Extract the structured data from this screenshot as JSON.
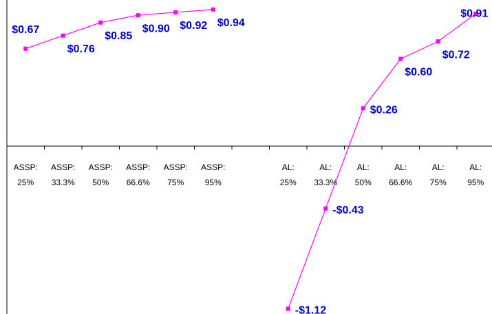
{
  "chart_data": {
    "type": "line",
    "categories": [
      "ASSP:\n25%",
      "ASSP:\n33.3%",
      "ASSP:\n50%",
      "ASSP:\n66.6%",
      "ASSP:\n75%",
      "ASSP:\n95%",
      null,
      "AL:\n25%",
      "AL:\n33.3%",
      "AL:\n50%",
      "AL:\n66.6%",
      "AL:\n75%",
      "AL:\n95%"
    ],
    "series": [
      {
        "color": "#ff00ff",
        "values": [
          0.67,
          0.76,
          0.85,
          0.9,
          0.92,
          0.94,
          null,
          -1.12,
          -0.43,
          0.26,
          0.6,
          0.72,
          0.91
        ],
        "value_labels": [
          "$0.67",
          "$0.76",
          "$0.85",
          "$0.90",
          "$0.92",
          "$0.94",
          null,
          "-$1.12",
          "-$0.43",
          "$0.26",
          "$0.60",
          "$0.72",
          "$0.91"
        ]
      }
    ],
    "label_color": "#0000cc",
    "ylim": [
      -1.156,
      1.005
    ]
  }
}
